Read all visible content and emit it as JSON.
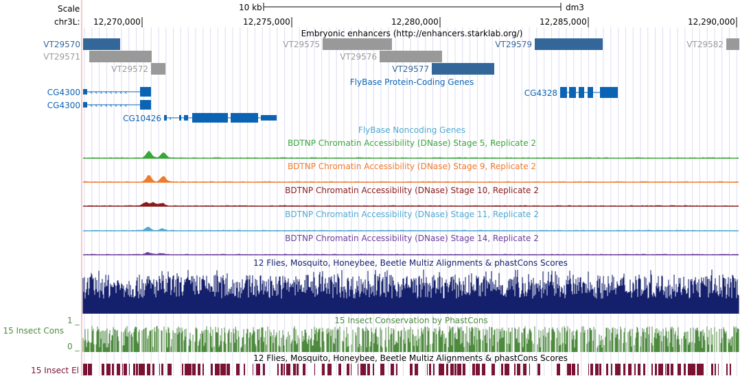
{
  "header": {
    "scale_label": "Scale",
    "chrom_label": "chr3L:",
    "scale_bar_label": "10 kb",
    "assembly": "dm3"
  },
  "ruler": {
    "ticks": [
      {
        "label": "12,270,000",
        "pos": 12270000
      },
      {
        "label": "12,275,000",
        "pos": 12275000
      },
      {
        "label": "12,280,000",
        "pos": 12280000
      },
      {
        "label": "12,285,000",
        "pos": 12285000
      },
      {
        "label": "12,290,000",
        "pos": 12290000
      }
    ]
  },
  "colors": {
    "enhancer_active": "#336699",
    "enhancer_inactive": "#999999",
    "gene": "#0b63b3",
    "stage5": "#3aa63a",
    "stage9": "#f07b2a",
    "stage10": "#8b1a1a",
    "stage11": "#4fa8d0",
    "stage14": "#6a3d9a",
    "multiz": "#14206b",
    "phastcons": "#4e8a3e",
    "elements": "#7a1234"
  },
  "tracks": {
    "enhancers": {
      "title": "Embryonic enhancers (http://enhancers.starklab.org/)",
      "items": [
        {
          "name": "VT29570",
          "active": true
        },
        {
          "name": "VT29571",
          "active": false
        },
        {
          "name": "VT29572",
          "active": false
        },
        {
          "name": "VT29575",
          "active": false
        },
        {
          "name": "VT29576",
          "active": false
        },
        {
          "name": "VT29577",
          "active": true
        },
        {
          "name": "VT29579",
          "active": true
        },
        {
          "name": "VT29582",
          "active": false
        }
      ]
    },
    "coding_genes": {
      "title": "FlyBase Protein-Coding Genes",
      "genes": [
        {
          "name": "CG4300"
        },
        {
          "name": "CG4300"
        },
        {
          "name": "CG10426"
        },
        {
          "name": "CG4328"
        }
      ]
    },
    "noncoding": {
      "title": "FlyBase Noncoding Genes"
    },
    "dnase": [
      {
        "title": "BDTNP Chromatin Accessibility (DNase) Stage 5, Replicate 2"
      },
      {
        "title": "BDTNP Chromatin Accessibility (DNase) Stage 9, Replicate 2"
      },
      {
        "title": "BDTNP Chromatin Accessibility (DNase) Stage 10, Replicate 2"
      },
      {
        "title": "BDTNP Chromatin Accessibility (DNase) Stage 11, Replicate 2"
      },
      {
        "title": "BDTNP Chromatin Accessibility (DNase) Stage 14, Replicate 2"
      }
    ],
    "multiz": {
      "title": "12 Flies, Mosquito, Honeybee, Beetle Multiz Alignments & phastCons Scores"
    },
    "phastcons": {
      "title": "15 Insect Conservation by PhastCons",
      "side_label": "15 Insect Cons",
      "axis_max": "1 _",
      "axis_min": "0 _"
    },
    "elements": {
      "title": "12 Flies, Mosquito, Honeybee, Beetle Multiz Alignments & phastCons Scores",
      "side_label": "15 Insect El"
    }
  }
}
